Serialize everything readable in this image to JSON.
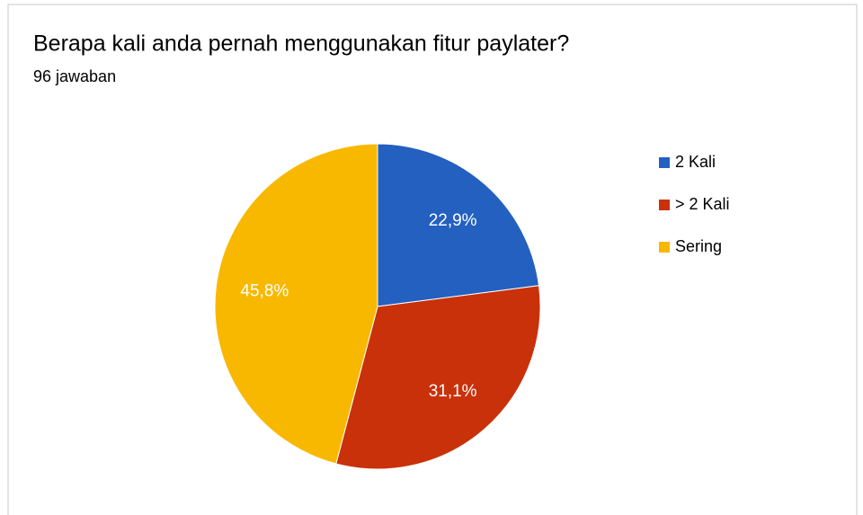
{
  "chart_data": {
    "type": "pie",
    "title": "Berapa kali anda pernah menggunakan fitur paylater?",
    "subtitle": "96 jawaban",
    "categories": [
      "2 Kali",
      "> 2 Kali",
      "Sering"
    ],
    "values": [
      22.9,
      31.1,
      45.8
    ],
    "value_labels": [
      "22,9%",
      "31,1%",
      "45,8%"
    ],
    "colors": [
      "#2360c0",
      "#c9310a",
      "#f9b800"
    ],
    "legend": "right"
  }
}
